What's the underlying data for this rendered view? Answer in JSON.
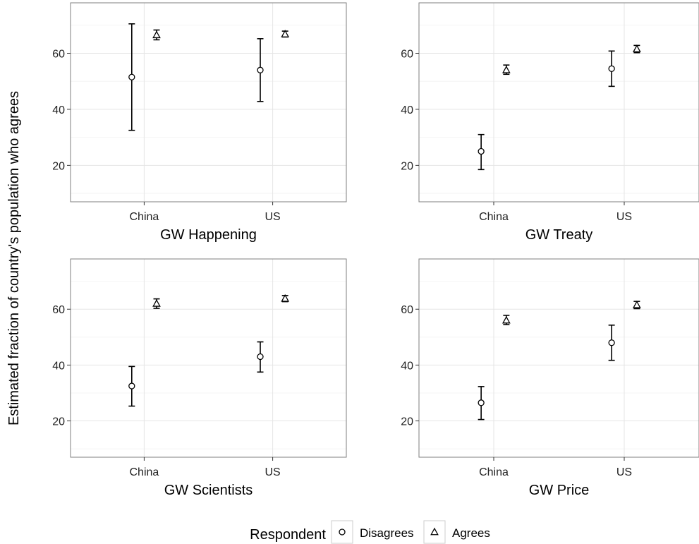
{
  "chart_data": {
    "type": "scatter",
    "ylabel": "Estimated fraction of country's population who agrees",
    "ylim": [
      7,
      78
    ],
    "yticks": [
      20,
      40,
      60
    ],
    "categories": [
      "China",
      "US"
    ],
    "grid": "on",
    "legend": {
      "title": "Respondent",
      "position": "bottom",
      "entries": [
        {
          "label": "Disagrees",
          "shape": "circle"
        },
        {
          "label": "Agrees",
          "shape": "triangle"
        }
      ]
    },
    "panels": [
      {
        "title": "GW Happening",
        "series": [
          {
            "name": "Disagrees",
            "shape": "circle",
            "values": [
              51.5,
              54.0
            ],
            "lower": [
              32.5,
              42.8
            ],
            "upper": [
              70.5,
              65.2
            ]
          },
          {
            "name": "Agrees",
            "shape": "triangle",
            "values": [
              66.5,
              66.8
            ],
            "lower": [
              64.8,
              65.8
            ],
            "upper": [
              68.3,
              67.9
            ]
          }
        ]
      },
      {
        "title": "GW Treaty",
        "series": [
          {
            "name": "Disagrees",
            "shape": "circle",
            "values": [
              25.0,
              54.5
            ],
            "lower": [
              18.5,
              48.2
            ],
            "upper": [
              31.0,
              60.8
            ]
          },
          {
            "name": "Agrees",
            "shape": "triangle",
            "values": [
              54.0,
              61.5
            ],
            "lower": [
              52.5,
              60.2
            ],
            "upper": [
              55.8,
              62.8
            ]
          }
        ]
      },
      {
        "title": "GW Scientists",
        "series": [
          {
            "name": "Disagrees",
            "shape": "circle",
            "values": [
              32.5,
              43.0
            ],
            "lower": [
              25.3,
              37.5
            ],
            "upper": [
              39.5,
              48.3
            ]
          },
          {
            "name": "Agrees",
            "shape": "triangle",
            "values": [
              62.0,
              63.8
            ],
            "lower": [
              60.3,
              62.7
            ],
            "upper": [
              63.7,
              64.9
            ]
          }
        ]
      },
      {
        "title": "GW Price",
        "series": [
          {
            "name": "Disagrees",
            "shape": "circle",
            "values": [
              26.5,
              48.0
            ],
            "lower": [
              20.5,
              41.7
            ],
            "upper": [
              32.3,
              54.3
            ]
          },
          {
            "name": "Agrees",
            "shape": "triangle",
            "values": [
              56.0,
              61.5
            ],
            "lower": [
              54.5,
              60.2
            ],
            "upper": [
              57.8,
              62.8
            ]
          }
        ]
      }
    ]
  }
}
